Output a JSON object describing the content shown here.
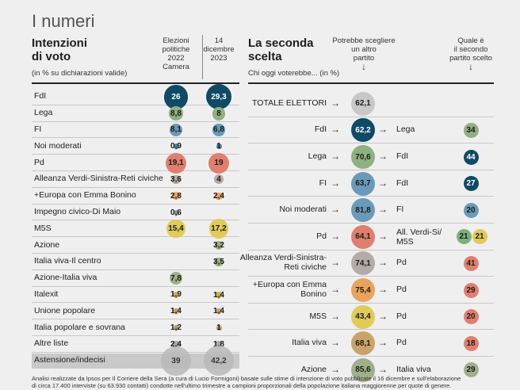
{
  "title": "I numeri",
  "left": {
    "heading_line1": "Intenzioni",
    "heading_line2": "di voto",
    "subtitle": "(in % su dichiarazioni valide)",
    "col1_lines": [
      "Elezioni",
      "politiche",
      "2022",
      "Camera"
    ],
    "col2_lines": [
      "14",
      "dicembre",
      "2023"
    ]
  },
  "right": {
    "heading_line1": "La seconda",
    "heading_line2": "scelta",
    "subtitle": "Chi oggi voterebbe... (in %)",
    "col1_lines": [
      "Potrebbe scegliere",
      "un altro",
      "partito"
    ],
    "col2_lines": [
      "Quale è",
      "il secondo",
      "partito scelto"
    ],
    "down_arrow": "↓",
    "arrow": "→"
  },
  "chart_data": [
    {
      "type": "table",
      "title": "Intenzioni di voto",
      "columns": [
        "Elezioni politiche 2022 Camera",
        "14 dicembre 2023"
      ],
      "rows": [
        {
          "label": "FdI",
          "v2022": "26",
          "v2023": "29,3",
          "color": "#0f4a66"
        },
        {
          "label": "Lega",
          "v2022": "8,8",
          "v2023": "8",
          "color": "#8fb07f"
        },
        {
          "label": "FI",
          "v2022": "8,1",
          "v2023": "6,8",
          "color": "#6a9ab9"
        },
        {
          "label": "Noi moderati",
          "v2022": "0,9",
          "v2023": "1",
          "color": "#4a7fa8"
        },
        {
          "label": "Pd",
          "v2022": "19,1",
          "v2023": "19",
          "color": "#e07f6e"
        },
        {
          "label": "Alleanza Verdi-Sinistra-Reti civiche",
          "v2022": "3,6",
          "v2023": "4",
          "color": "#b5aba6"
        },
        {
          "label": "+Europa con Emma Bonino",
          "v2022": "2,8",
          "v2023": "2,4",
          "color": "#e9a45c"
        },
        {
          "label": "Impegno civico-Di Maio",
          "v2022": "0,6",
          "v2023": "",
          "color": "#999999"
        },
        {
          "label": "M5S",
          "v2022": "15,4",
          "v2023": "17,2",
          "color": "#e0cb5a"
        },
        {
          "label": "Azione",
          "v2022": "",
          "v2023": "3,2",
          "color": "#9fb08a"
        },
        {
          "label": "Italia viva-Il centro",
          "v2022": "",
          "v2023": "3,5",
          "color": "#9fb08a"
        },
        {
          "label": "Azione-Italia viva",
          "v2022": "7,8",
          "v2023": "",
          "color": "#9fb08a"
        },
        {
          "label": "Italexit",
          "v2022": "1,9",
          "v2023": "1,4",
          "color": "#c9b84a"
        },
        {
          "label": "Unione popolare",
          "v2022": "1,4",
          "v2023": "1,4",
          "color": "#c9a36a"
        },
        {
          "label": "Italia popolare e sovrana",
          "v2022": "1,2",
          "v2023": "1",
          "color": "#b0a07a"
        },
        {
          "label": "Altre liste",
          "v2022": "2,4",
          "v2023": "1,8",
          "color": "#aaaaaa"
        },
        {
          "label": "Astensione/indecisi",
          "v2022": "39",
          "v2023": "42,2",
          "color": "#b9b9b9"
        }
      ]
    },
    {
      "type": "table",
      "title": "La seconda scelta",
      "rows": [
        {
          "label": "TOTALE ELETTORI",
          "value": "62,1",
          "color": "#c8c8c8",
          "second": []
        },
        {
          "label": "FdI",
          "value": "62,2",
          "color": "#0f4a66",
          "second": [
            {
              "party": "Lega",
              "value": "34",
              "color": "#8fb07f"
            }
          ]
        },
        {
          "label": "Lega",
          "value": "70,6",
          "color": "#8fb07f",
          "second": [
            {
              "party": "FdI",
              "value": "44",
              "color": "#0f4a66"
            }
          ]
        },
        {
          "label": "FI",
          "value": "63,7",
          "color": "#6a9ab9",
          "second": [
            {
              "party": "FdI",
              "value": "27",
              "color": "#0f4a66"
            }
          ]
        },
        {
          "label": "Noi moderati",
          "value": "81,8",
          "color": "#6a9ab9",
          "second": [
            {
              "party": "FI",
              "value": "20",
              "color": "#6a9ab9"
            }
          ]
        },
        {
          "label": "Pd",
          "value": "64,1",
          "color": "#e07f6e",
          "second_label": "All. Verdi-Si/ M5S",
          "second": [
            {
              "party": "All. Verdi-Si",
              "value": "21",
              "color": "#7cb07a"
            },
            {
              "party": "M5S",
              "value": "21",
              "color": "#e0cb5a"
            }
          ]
        },
        {
          "label": "Alleanza Verdi-Sinistra-Reti civiche",
          "value": "74,1",
          "color": "#b5aba6",
          "second": [
            {
              "party": "Pd",
              "value": "41",
              "color": "#e07f6e"
            }
          ]
        },
        {
          "label": "+Europa con Emma Bonino",
          "value": "75,4",
          "color": "#e9a45c",
          "second": [
            {
              "party": "Pd",
              "value": "29",
              "color": "#e07f6e"
            }
          ]
        },
        {
          "label": "M5S",
          "value": "43,4",
          "color": "#e0cb5a",
          "second": [
            {
              "party": "Pd",
              "value": "20",
              "color": "#e07f6e"
            }
          ]
        },
        {
          "label": "Italia viva",
          "value": "68,1",
          "color": "#c9a36a",
          "second": [
            {
              "party": "Pd",
              "value": "18",
              "color": "#e07f6e"
            }
          ]
        },
        {
          "label": "Azione",
          "value": "85,6",
          "color": "#9fb08a",
          "second": [
            {
              "party": "Italia viva",
              "value": "29",
              "color": "#9fb08a"
            }
          ]
        }
      ]
    }
  ],
  "footer_line1": "Analisi realizzate da Ipsos per Il Corriere della Sera (a cura di Lucio Formigoni) basate sulle stime di intenzione di voto pubblicate il 16 dicembre e sull'elaborazione",
  "footer_line2": "di circa 17.400 interviste (su 63.930 contatti) condotte nell'ultimo trimestre a campioni proporzionali della popolazione italiana maggiorenne per quote di genere."
}
